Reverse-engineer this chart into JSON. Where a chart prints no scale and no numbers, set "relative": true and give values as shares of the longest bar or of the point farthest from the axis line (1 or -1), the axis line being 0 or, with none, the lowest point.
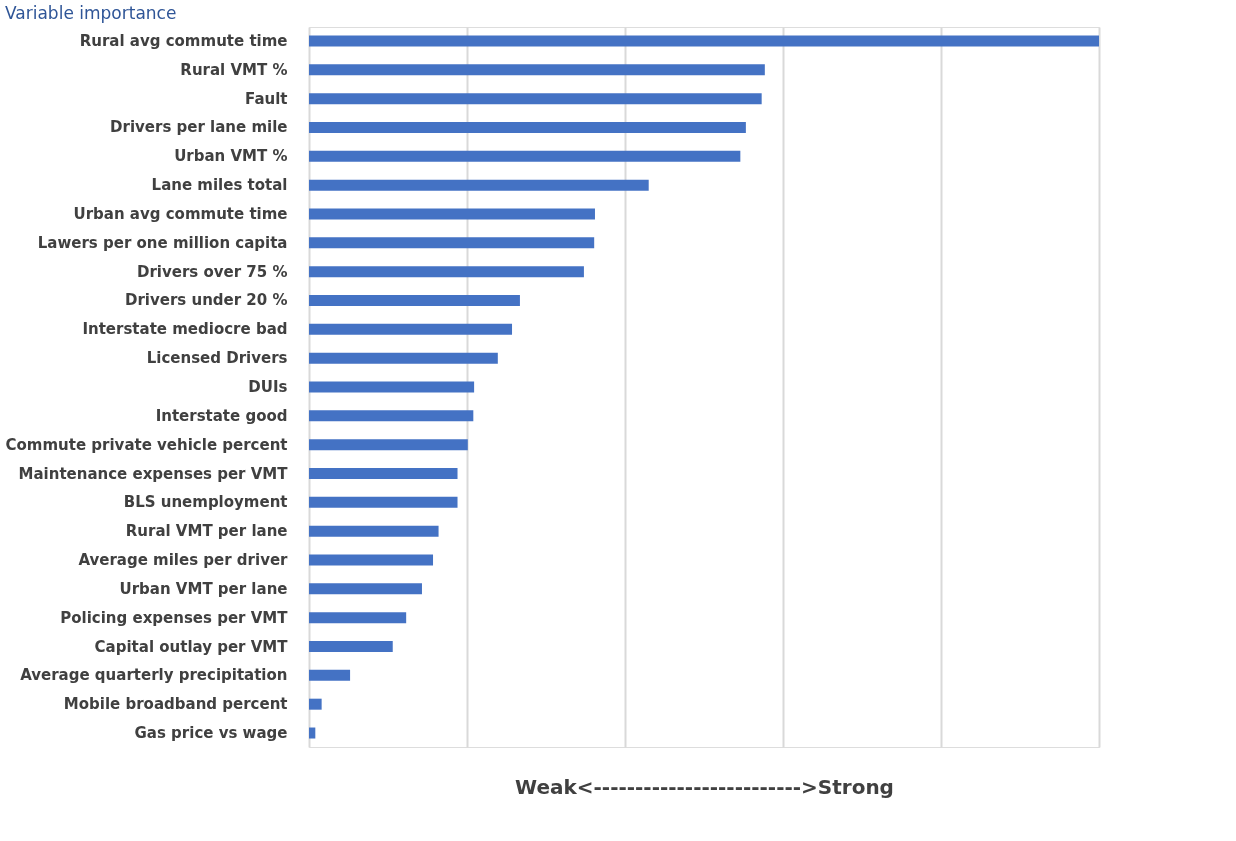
{
  "chart_data": {
    "type": "bar",
    "orientation": "horizontal",
    "relative": true,
    "title": "Variable importance",
    "xlabel": "Weak<------------------------->Strong",
    "color": "#4472c4",
    "grid": "x",
    "categories": [
      "Rural avg commute time",
      "Rural VMT %",
      "Fault",
      "Drivers per lane mile",
      "Urban VMT %",
      "Lane miles total",
      "Urban avg commute time",
      "Lawers per one million capita",
      "Drivers over 75 %",
      "Drivers under 20 %",
      "Interstate mediocre bad",
      "Licensed Drivers",
      "DUIs",
      "Interstate good",
      "Commute private vehicle percent",
      "Maintenance expenses per VMT",
      "BLS unemployment",
      "Rural VMT per lane",
      "Average miles per driver",
      "Urban VMT per lane",
      "Policing expenses per VMT",
      "Capital outlay per VMT",
      "Average quarterly precipitation",
      "Mobile broadband percent",
      "Gas price vs wage"
    ],
    "values": [
      1,
      0.577,
      0.573,
      0.553,
      0.546,
      0.43,
      0.362,
      0.361,
      0.348,
      0.267,
      0.257,
      0.239,
      0.209,
      0.208,
      0.201,
      0.188,
      0.188,
      0.164,
      0.157,
      0.143,
      0.123,
      0.106,
      0.052,
      0.016,
      0.008
    ]
  }
}
